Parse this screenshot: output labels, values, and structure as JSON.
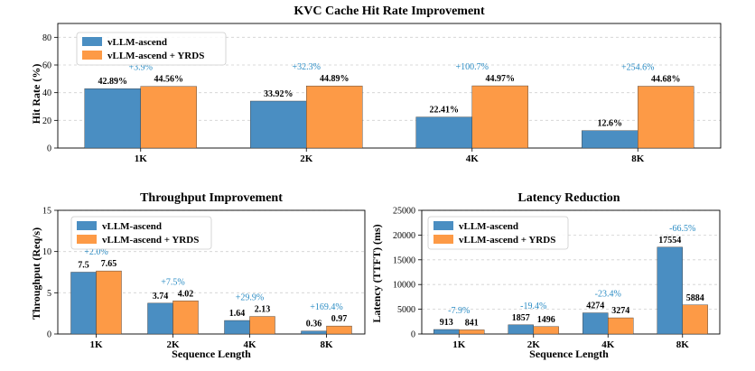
{
  "colors": {
    "base": "#4a8ec2",
    "yrds": "#fd9a46",
    "improvement": "#2b8cc4"
  },
  "legend": {
    "base": "vLLM-ascend",
    "yrds": "vLLM-ascend + YRDS"
  },
  "chart_data": [
    {
      "id": "hit_rate",
      "type": "bar",
      "title": "KVC Cache Hit Rate Improvement",
      "xlabel": "",
      "ylabel": "Hit Rate (%)",
      "ylim": [
        0,
        90
      ],
      "yticks": [
        0,
        20,
        40,
        60,
        80
      ],
      "grid": true,
      "legend_position": "top-left",
      "categories": [
        "1K",
        "2K",
        "4K",
        "8K"
      ],
      "series": [
        {
          "name": "vLLM-ascend",
          "values": [
            42.89,
            33.92,
            22.41,
            12.6
          ],
          "labels": [
            "42.89%",
            "33.92%",
            "22.41%",
            "12.6%"
          ]
        },
        {
          "name": "vLLM-ascend + YRDS",
          "values": [
            44.56,
            44.89,
            44.97,
            44.68
          ],
          "labels": [
            "44.56%",
            "44.89%",
            "44.97%",
            "44.68%"
          ]
        }
      ],
      "improvements": [
        "+3.9%",
        "+32.3%",
        "+100.7%",
        "+254.6%"
      ]
    },
    {
      "id": "throughput",
      "type": "bar",
      "title": "Throughput Improvement",
      "xlabel": "Sequence Length",
      "ylabel": "Throughput (Req/s)",
      "ylim": [
        0,
        15
      ],
      "yticks": [
        0,
        5,
        10,
        15
      ],
      "grid": true,
      "legend_position": "top-right",
      "categories": [
        "1K",
        "2K",
        "4K",
        "8K"
      ],
      "series": [
        {
          "name": "vLLM-ascend",
          "values": [
            7.5,
            3.74,
            1.64,
            0.36
          ],
          "labels": [
            "7.5",
            "3.74",
            "1.64",
            "0.36"
          ]
        },
        {
          "name": "vLLM-ascend + YRDS",
          "values": [
            7.65,
            4.02,
            2.13,
            0.97
          ],
          "labels": [
            "7.65",
            "4.02",
            "2.13",
            "0.97"
          ]
        }
      ],
      "improvements": [
        "+2.0%",
        "+7.5%",
        "+29.9%",
        "+169.4%"
      ]
    },
    {
      "id": "latency",
      "type": "bar",
      "title": "Latency Reduction",
      "xlabel": "Sequence Length",
      "ylabel": "Latency (TTFT) (ms)",
      "ylim": [
        0,
        25000
      ],
      "yticks": [
        0,
        5000,
        10000,
        15000,
        20000,
        25000
      ],
      "grid": true,
      "legend_position": "top-left",
      "categories": [
        "1K",
        "2K",
        "4K",
        "8K"
      ],
      "series": [
        {
          "name": "vLLM-ascend",
          "values": [
            913,
            1857,
            4274,
            17554
          ],
          "labels": [
            "913",
            "1857",
            "4274",
            "17554"
          ]
        },
        {
          "name": "vLLM-ascend + YRDS",
          "values": [
            841,
            1496,
            3274,
            5884
          ],
          "labels": [
            "841",
            "1496",
            "3274",
            "5884"
          ]
        }
      ],
      "improvements": [
        "-7.9%",
        "-19.4%",
        "-23.4%",
        "-66.5%"
      ]
    }
  ]
}
